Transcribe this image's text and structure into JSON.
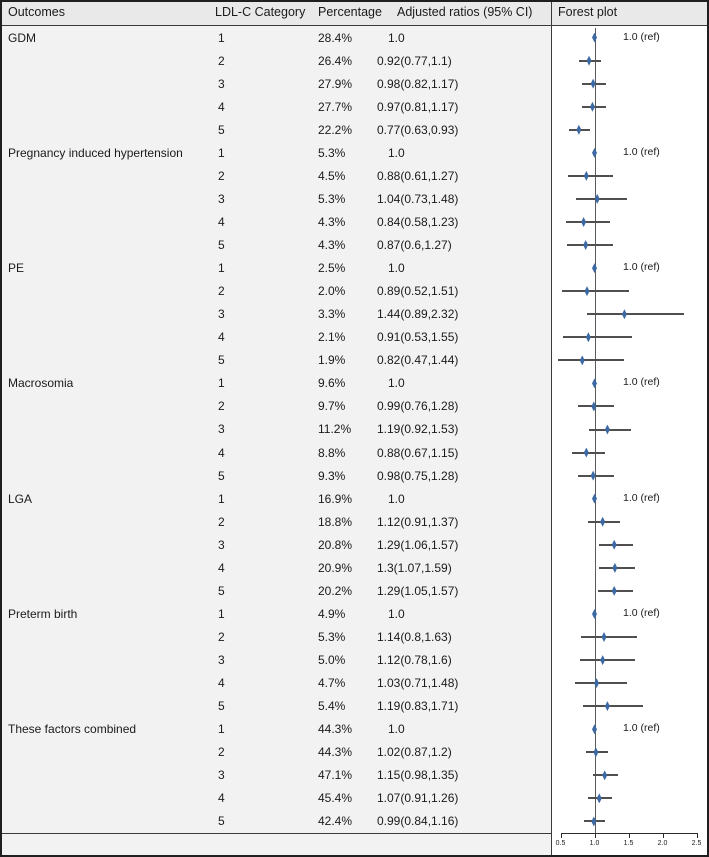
{
  "chart_data": {
    "type": "forest",
    "columns": [
      "Outcomes",
      "LDL-C Category",
      "Percentage",
      "Adjusted ratios (95% CI)",
      "Forest plot"
    ],
    "ref_label": "1.0 (ref)",
    "axis": {
      "xlim": [
        0.5,
        2.5
      ],
      "ref_value": 1.0,
      "ticks": [
        0.5,
        1.0,
        1.5,
        2.0,
        2.5
      ],
      "tick_labels": [
        "0.5",
        "1.0",
        "1.5",
        "2.0",
        "2.5"
      ]
    },
    "colors": {
      "marker": "#3c69a4",
      "ci_line": "#4f4f4f",
      "ref_line": "#5a5a5a",
      "page_bg": "#f2f2f2",
      "plot_bg": "#ffffff"
    },
    "groups": [
      {
        "outcome": "GDM",
        "rows": [
          {
            "category": "1",
            "percentage": "28.4%",
            "ratio": "1.0",
            "est": 1.0,
            "lo": null,
            "hi": null,
            "ref": true
          },
          {
            "category": "2",
            "percentage": "26.4%",
            "ratio": "0.92(0.77,1.1)",
            "est": 0.92,
            "lo": 0.77,
            "hi": 1.1,
            "ref": false
          },
          {
            "category": "3",
            "percentage": "27.9%",
            "ratio": "0.98(0.82,1.17)",
            "est": 0.98,
            "lo": 0.82,
            "hi": 1.17,
            "ref": false
          },
          {
            "category": "4",
            "percentage": "27.7%",
            "ratio": "0.97(0.81,1.17)",
            "est": 0.97,
            "lo": 0.81,
            "hi": 1.17,
            "ref": false
          },
          {
            "category": "5",
            "percentage": "22.2%",
            "ratio": "0.77(0.63,0.93)",
            "est": 0.77,
            "lo": 0.63,
            "hi": 0.93,
            "ref": false
          }
        ]
      },
      {
        "outcome": "Pregnancy induced hypertension",
        "rows": [
          {
            "category": "1",
            "percentage": "5.3%",
            "ratio": "1.0",
            "est": 1.0,
            "lo": null,
            "hi": null,
            "ref": true
          },
          {
            "category": "2",
            "percentage": "4.5%",
            "ratio": "0.88(0.61,1.27)",
            "est": 0.88,
            "lo": 0.61,
            "hi": 1.27,
            "ref": false
          },
          {
            "category": "3",
            "percentage": "5.3%",
            "ratio": "1.04(0.73,1.48)",
            "est": 1.04,
            "lo": 0.73,
            "hi": 1.48,
            "ref": false
          },
          {
            "category": "4",
            "percentage": "4.3%",
            "ratio": "0.84(0.58,1.23)",
            "est": 0.84,
            "lo": 0.58,
            "hi": 1.23,
            "ref": false
          },
          {
            "category": "5",
            "percentage": "4.3%",
            "ratio": "0.87(0.6,1.27)",
            "est": 0.87,
            "lo": 0.6,
            "hi": 1.27,
            "ref": false
          }
        ]
      },
      {
        "outcome": "PE",
        "rows": [
          {
            "category": "1",
            "percentage": "2.5%",
            "ratio": "1.0",
            "est": 1.0,
            "lo": null,
            "hi": null,
            "ref": true
          },
          {
            "category": "2",
            "percentage": "2.0%",
            "ratio": "0.89(0.52,1.51)",
            "est": 0.89,
            "lo": 0.52,
            "hi": 1.51,
            "ref": false
          },
          {
            "category": "3",
            "percentage": "3.3%",
            "ratio": "1.44(0.89,2.32)",
            "est": 1.44,
            "lo": 0.89,
            "hi": 2.32,
            "ref": false
          },
          {
            "category": "4",
            "percentage": "2.1%",
            "ratio": "0.91(0.53,1.55)",
            "est": 0.91,
            "lo": 0.53,
            "hi": 1.55,
            "ref": false
          },
          {
            "category": "5",
            "percentage": "1.9%",
            "ratio": "0.82(0.47,1.44)",
            "est": 0.82,
            "lo": 0.47,
            "hi": 1.44,
            "ref": false
          }
        ]
      },
      {
        "outcome": "Macrosomia",
        "rows": [
          {
            "category": "1",
            "percentage": "9.6%",
            "ratio": "1.0",
            "est": 1.0,
            "lo": null,
            "hi": null,
            "ref": true
          },
          {
            "category": "2",
            "percentage": "9.7%",
            "ratio": "0.99(0.76,1.28)",
            "est": 0.99,
            "lo": 0.76,
            "hi": 1.28,
            "ref": false
          },
          {
            "category": "3",
            "percentage": "11.2%",
            "ratio": "1.19(0.92,1.53)",
            "est": 1.19,
            "lo": 0.92,
            "hi": 1.53,
            "ref": false
          },
          {
            "category": "4",
            "percentage": "8.8%",
            "ratio": "0.88(0.67,1.15)",
            "est": 0.88,
            "lo": 0.67,
            "hi": 1.15,
            "ref": false
          },
          {
            "category": "5",
            "percentage": "9.3%",
            "ratio": "0.98(0.75,1.28)",
            "est": 0.98,
            "lo": 0.75,
            "hi": 1.28,
            "ref": false
          }
        ]
      },
      {
        "outcome": "LGA",
        "rows": [
          {
            "category": "1",
            "percentage": "16.9%",
            "ratio": "1.0",
            "est": 1.0,
            "lo": null,
            "hi": null,
            "ref": true
          },
          {
            "category": "2",
            "percentage": "18.8%",
            "ratio": "1.12(0.91,1.37)",
            "est": 1.12,
            "lo": 0.91,
            "hi": 1.37,
            "ref": false
          },
          {
            "category": "3",
            "percentage": "20.8%",
            "ratio": "1.29(1.06,1.57)",
            "est": 1.29,
            "lo": 1.06,
            "hi": 1.57,
            "ref": false
          },
          {
            "category": "4",
            "percentage": "20.9%",
            "ratio": "1.3(1.07,1.59)",
            "est": 1.3,
            "lo": 1.07,
            "hi": 1.59,
            "ref": false
          },
          {
            "category": "5",
            "percentage": "20.2%",
            "ratio": "1.29(1.05,1.57)",
            "est": 1.29,
            "lo": 1.05,
            "hi": 1.57,
            "ref": false
          }
        ]
      },
      {
        "outcome": "Preterm birth",
        "rows": [
          {
            "category": "1",
            "percentage": "4.9%",
            "ratio": "1.0",
            "est": 1.0,
            "lo": null,
            "hi": null,
            "ref": true
          },
          {
            "category": "2",
            "percentage": "5.3%",
            "ratio": "1.14(0.8,1.63)",
            "est": 1.14,
            "lo": 0.8,
            "hi": 1.63,
            "ref": false
          },
          {
            "category": "3",
            "percentage": "5.0%",
            "ratio": "1.12(0.78,1.6)",
            "est": 1.12,
            "lo": 0.78,
            "hi": 1.6,
            "ref": false
          },
          {
            "category": "4",
            "percentage": "4.7%",
            "ratio": "1.03(0.71,1.48)",
            "est": 1.03,
            "lo": 0.71,
            "hi": 1.48,
            "ref": false
          },
          {
            "category": "5",
            "percentage": "5.4%",
            "ratio": "1.19(0.83,1.71)",
            "est": 1.19,
            "lo": 0.83,
            "hi": 1.71,
            "ref": false
          }
        ]
      },
      {
        "outcome": "These factors combined",
        "rows": [
          {
            "category": "1",
            "percentage": "44.3%",
            "ratio": "1.0",
            "est": 1.0,
            "lo": null,
            "hi": null,
            "ref": true
          },
          {
            "category": "2",
            "percentage": "44.3%",
            "ratio": "1.02(0.87,1.2)",
            "est": 1.02,
            "lo": 0.87,
            "hi": 1.2,
            "ref": false
          },
          {
            "category": "3",
            "percentage": "47.1%",
            "ratio": "1.15(0.98,1.35)",
            "est": 1.15,
            "lo": 0.98,
            "hi": 1.35,
            "ref": false
          },
          {
            "category": "4",
            "percentage": "45.4%",
            "ratio": "1.07(0.91,1.26)",
            "est": 1.07,
            "lo": 0.91,
            "hi": 1.26,
            "ref": false
          },
          {
            "category": "5",
            "percentage": "42.4%",
            "ratio": "0.99(0.84,1.16)",
            "est": 0.99,
            "lo": 0.84,
            "hi": 1.16,
            "ref": false
          }
        ]
      }
    ]
  }
}
